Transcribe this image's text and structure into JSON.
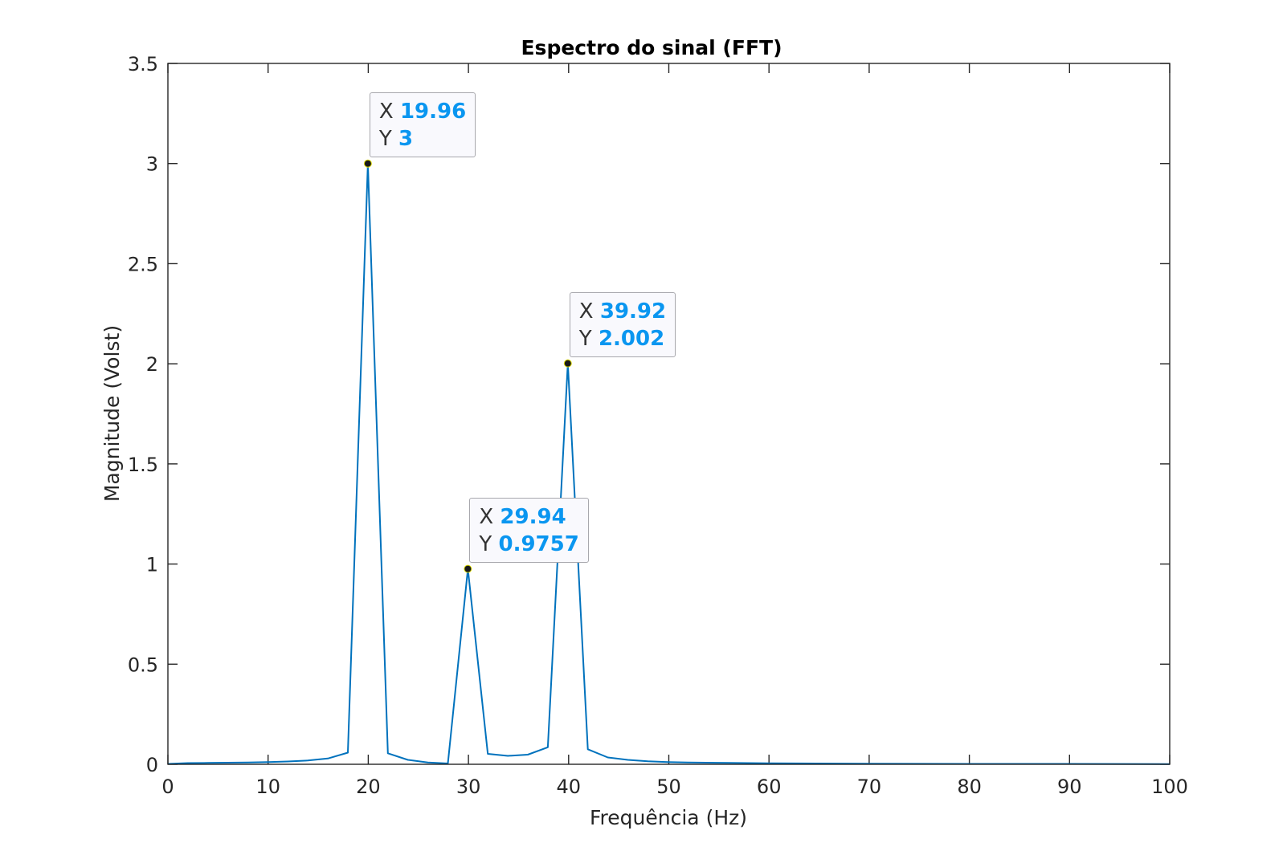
{
  "chart_data": {
    "type": "line",
    "title": "Espectro do sinal (FFT)",
    "xlabel": "Frequência (Hz)",
    "ylabel": "Magnitude (Volst)",
    "xlim": [
      0,
      100
    ],
    "ylim": [
      0,
      3.5
    ],
    "xticks": [
      "0",
      "10",
      "20",
      "30",
      "40",
      "50",
      "60",
      "70",
      "80",
      "90",
      "100"
    ],
    "yticks": [
      "0",
      "0.5",
      "1",
      "1.5",
      "2",
      "2.5",
      "3",
      "3.5"
    ],
    "grid": false,
    "series": [
      {
        "color": "#0072bd",
        "x": [
          0,
          1.996,
          3.992,
          5.988,
          7.984,
          9.98,
          11.976,
          13.972,
          15.968,
          17.964,
          19.96,
          21.956,
          23.952,
          25.948,
          27.944,
          29.94,
          31.936,
          33.932,
          35.928,
          37.924,
          39.92,
          41.916,
          43.912,
          45.908,
          47.904,
          49.9,
          51.896,
          55.888,
          59.88,
          64.87,
          69.86,
          79.84,
          89.82,
          100
        ],
        "y": [
          0.002,
          0.006,
          0.007,
          0.008,
          0.009,
          0.011,
          0.014,
          0.019,
          0.029,
          0.058,
          3,
          0.055,
          0.022,
          0.009,
          0.004,
          0.9757,
          0.052,
          0.042,
          0.048,
          0.085,
          2.002,
          0.075,
          0.034,
          0.022,
          0.015,
          0.011,
          0.009,
          0.007,
          0.005,
          0.004,
          0.003,
          0.002,
          0.002,
          0.001
        ]
      }
    ],
    "datatips": [
      {
        "x_label": "X",
        "x_value": "19.96",
        "y_label": "Y",
        "y_value": "3",
        "x": 19.96,
        "y": 3
      },
      {
        "x_label": "X",
        "x_value": "29.94",
        "y_label": "Y",
        "y_value": "0.9757",
        "x": 29.94,
        "y": 0.9757
      },
      {
        "x_label": "X",
        "x_value": "39.92",
        "y_label": "Y",
        "y_value": "2.002",
        "x": 39.92,
        "y": 2.002
      }
    ]
  }
}
